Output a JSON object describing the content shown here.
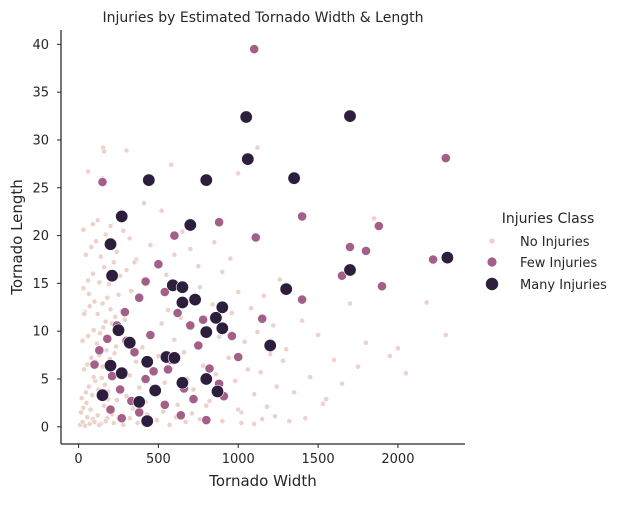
{
  "chart_data": {
    "type": "scatter",
    "title": "Injuries by Estimated Tornado Width & Length",
    "xlabel": "Tornado Width",
    "ylabel": "Tornado Length",
    "xlim": [
      -110,
      2420
    ],
    "ylim": [
      -1.8,
      41.5
    ],
    "xticks": [
      0,
      500,
      1000,
      1500,
      2000
    ],
    "yticks": [
      0,
      5,
      10,
      15,
      20,
      25,
      30,
      35,
      40
    ],
    "grid": false,
    "legend": {
      "title": "Injuries Class",
      "placement": "right",
      "entries": [
        "No Injuries",
        "Few Injuries",
        "Many Injuries"
      ]
    },
    "series": [
      {
        "name": "No Injuries",
        "color": "#edd1cb",
        "marker": "small",
        "points": [
          [
            10,
            0.2
          ],
          [
            25,
            0.5
          ],
          [
            40,
            0.1
          ],
          [
            55,
            1.0
          ],
          [
            70,
            0.3
          ],
          [
            90,
            0.8
          ],
          [
            15,
            1.5
          ],
          [
            30,
            2.0
          ],
          [
            50,
            2.5
          ],
          [
            75,
            1.8
          ],
          [
            100,
            0.5
          ],
          [
            120,
            1.2
          ],
          [
            140,
            0.3
          ],
          [
            160,
            2.2
          ],
          [
            180,
            0.9
          ],
          [
            200,
            1.6
          ],
          [
            220,
            0.4
          ],
          [
            240,
            2.8
          ],
          [
            260,
            1.1
          ],
          [
            280,
            0.2
          ],
          [
            20,
            3.0
          ],
          [
            45,
            3.6
          ],
          [
            65,
            4.2
          ],
          [
            85,
            3.3
          ],
          [
            105,
            4.8
          ],
          [
            125,
            3.9
          ],
          [
            145,
            5.1
          ],
          [
            165,
            4.4
          ],
          [
            185,
            3.7
          ],
          [
            205,
            5.6
          ],
          [
            35,
            6.0
          ],
          [
            55,
            6.5
          ],
          [
            80,
            7.2
          ],
          [
            110,
            6.8
          ],
          [
            130,
            7.5
          ],
          [
            150,
            6.3
          ],
          [
            175,
            8.0
          ],
          [
            195,
            7.1
          ],
          [
            215,
            6.6
          ],
          [
            235,
            8.4
          ],
          [
            25,
            9.0
          ],
          [
            60,
            9.5
          ],
          [
            95,
            10.1
          ],
          [
            115,
            8.7
          ],
          [
            135,
            9.8
          ],
          [
            155,
            10.4
          ],
          [
            170,
            11.0
          ],
          [
            190,
            9.3
          ],
          [
            210,
            10.8
          ],
          [
            230,
            11.5
          ],
          [
            40,
            12.0
          ],
          [
            70,
            12.6
          ],
          [
            100,
            13.1
          ],
          [
            120,
            11.8
          ],
          [
            150,
            12.9
          ],
          [
            180,
            13.5
          ],
          [
            200,
            12.3
          ],
          [
            250,
            13.8
          ],
          [
            270,
            12.1
          ],
          [
            290,
            11.2
          ],
          [
            30,
            14.5
          ],
          [
            60,
            15.3
          ],
          [
            90,
            16.0
          ],
          [
            130,
            15.1
          ],
          [
            160,
            16.7
          ],
          [
            190,
            14.9
          ],
          [
            220,
            17.2
          ],
          [
            260,
            15.8
          ],
          [
            300,
            16.4
          ],
          [
            330,
            14.2
          ],
          [
            45,
            18.0
          ],
          [
            80,
            18.8
          ],
          [
            110,
            19.4
          ],
          [
            140,
            17.8
          ],
          [
            170,
            20.1
          ],
          [
            200,
            19.0
          ],
          [
            240,
            18.3
          ],
          [
            280,
            20.5
          ],
          [
            320,
            19.7
          ],
          [
            360,
            17.5
          ],
          [
            30,
            20.6
          ],
          [
            90,
            21.2
          ],
          [
            150,
            26.0
          ],
          [
            155,
            29.2
          ],
          [
            160,
            28.8
          ],
          [
            300,
            28.9
          ],
          [
            580,
            27.4
          ],
          [
            60,
            26.7
          ],
          [
            120,
            21.6
          ],
          [
            200,
            21.0
          ],
          [
            300,
            3.2
          ],
          [
            320,
            5.4
          ],
          [
            340,
            1.9
          ],
          [
            360,
            6.8
          ],
          [
            380,
            4.1
          ],
          [
            400,
            8.3
          ],
          [
            420,
            2.6
          ],
          [
            440,
            9.7
          ],
          [
            460,
            5.9
          ],
          [
            480,
            3.5
          ],
          [
            500,
            7.4
          ],
          [
            520,
            10.8
          ],
          [
            540,
            4.6
          ],
          [
            560,
            12.2
          ],
          [
            580,
            6.1
          ],
          [
            600,
            9.1
          ],
          [
            620,
            2.3
          ],
          [
            640,
            11.4
          ],
          [
            660,
            7.8
          ],
          [
            680,
            5.0
          ],
          [
            700,
            13.4
          ],
          [
            720,
            3.9
          ],
          [
            740,
            8.7
          ],
          [
            760,
            14.6
          ],
          [
            780,
            6.4
          ],
          [
            800,
            10.2
          ],
          [
            820,
            2.7
          ],
          [
            840,
            12.8
          ],
          [
            860,
            5.5
          ],
          [
            880,
            9.4
          ],
          [
            900,
            16.2
          ],
          [
            920,
            3.1
          ],
          [
            940,
            7.2
          ],
          [
            960,
            11.9
          ],
          [
            980,
            4.8
          ],
          [
            1000,
            14.1
          ],
          [
            1020,
            1.5
          ],
          [
            1040,
            8.9
          ],
          [
            1060,
            6.0
          ],
          [
            1080,
            12.4
          ],
          [
            1100,
            3.4
          ],
          [
            1120,
            9.9
          ],
          [
            1140,
            5.7
          ],
          [
            1160,
            13.7
          ],
          [
            1180,
            2.1
          ],
          [
            1200,
            7.6
          ],
          [
            1220,
            10.6
          ],
          [
            1240,
            4.2
          ],
          [
            1260,
            15.4
          ],
          [
            1280,
            6.9
          ],
          [
            1300,
            8.1
          ],
          [
            1350,
            3.6
          ],
          [
            1400,
            11.1
          ],
          [
            1450,
            5.2
          ],
          [
            1500,
            9.6
          ],
          [
            1550,
            2.9
          ],
          [
            1600,
            7.0
          ],
          [
            1650,
            4.5
          ],
          [
            1700,
            12.9
          ],
          [
            1750,
            6.3
          ],
          [
            1800,
            8.8
          ],
          [
            1850,
            21.8
          ],
          [
            1950,
            7.4
          ],
          [
            2000,
            8.2
          ],
          [
            2050,
            5.6
          ],
          [
            2180,
            13.0
          ],
          [
            2300,
            9.6
          ],
          [
            1120,
            29.2
          ],
          [
            1000,
            26.5
          ],
          [
            700,
            18.6
          ],
          [
            350,
            17.2
          ],
          [
            410,
            23.4
          ],
          [
            450,
            19.0
          ],
          [
            520,
            22.6
          ],
          [
            550,
            15.9
          ],
          [
            600,
            18.0
          ],
          [
            650,
            20.4
          ],
          [
            750,
            16.8
          ],
          [
            850,
            19.3
          ],
          [
            950,
            17.6
          ],
          [
            1020,
            0.4
          ],
          [
            1150,
            0.8
          ],
          [
            1230,
            1.1
          ],
          [
            1320,
            0.6
          ],
          [
            1420,
            0.9
          ],
          [
            1530,
            2.4
          ],
          [
            1100,
            0.3
          ],
          [
            1000,
            1.8
          ],
          [
            900,
            0.6
          ],
          [
            800,
            2.2
          ],
          [
            320,
            0.9
          ],
          [
            370,
            0.4
          ],
          [
            430,
            1.3
          ],
          [
            490,
            0.7
          ],
          [
            530,
            1.6
          ],
          [
            570,
            0.2
          ],
          [
            610,
            1.0
          ],
          [
            670,
            0.5
          ],
          [
            710,
            1.4
          ],
          [
            760,
            0.8
          ],
          [
            130,
            0.2
          ],
          [
            170,
            0.6
          ],
          [
            210,
            1.3
          ],
          [
            250,
            0.9
          ],
          [
            35,
            11.8
          ],
          [
            65,
            13.9
          ],
          [
            95,
            5.2
          ],
          [
            145,
            8.2
          ],
          [
            185,
            2.9
          ],
          [
            225,
            7.7
          ]
        ]
      },
      {
        "name": "Few Injuries",
        "color": "#a35f87",
        "marker": "medium",
        "points": [
          [
            1100,
            39.5
          ],
          [
            2300,
            28.1
          ],
          [
            150,
            25.6
          ],
          [
            880,
            21.4
          ],
          [
            1400,
            22.0
          ],
          [
            1880,
            21.0
          ],
          [
            600,
            20.0
          ],
          [
            1110,
            19.8
          ],
          [
            1700,
            18.8
          ],
          [
            1800,
            18.4
          ],
          [
            2220,
            17.5
          ],
          [
            1650,
            15.8
          ],
          [
            1900,
            14.7
          ],
          [
            500,
            17.0
          ],
          [
            420,
            15.2
          ],
          [
            380,
            13.5
          ],
          [
            1400,
            13.3
          ],
          [
            1150,
            11.3
          ],
          [
            900,
            12.4
          ],
          [
            960,
            9.5
          ],
          [
            1000,
            7.3
          ],
          [
            540,
            14.1
          ],
          [
            290,
            12.0
          ],
          [
            240,
            10.6
          ],
          [
            180,
            9.2
          ],
          [
            130,
            8.0
          ],
          [
            100,
            6.5
          ],
          [
            210,
            5.3
          ],
          [
            260,
            3.9
          ],
          [
            330,
            2.7
          ],
          [
            470,
            5.8
          ],
          [
            580,
            7.0
          ],
          [
            660,
            4.0
          ],
          [
            750,
            8.5
          ],
          [
            820,
            6.1
          ],
          [
            910,
            3.2
          ],
          [
            700,
            10.6
          ],
          [
            620,
            11.9
          ],
          [
            450,
            9.6
          ],
          [
            350,
            7.8
          ],
          [
            150,
            3.1
          ],
          [
            200,
            1.8
          ],
          [
            270,
            0.9
          ],
          [
            380,
            1.5
          ],
          [
            540,
            2.3
          ],
          [
            640,
            1.2
          ],
          [
            720,
            2.9
          ],
          [
            800,
            0.7
          ],
          [
            880,
            4.5
          ],
          [
            560,
            6.0
          ],
          [
            780,
            11.2
          ],
          [
            300,
            9.0
          ],
          [
            420,
            5.0
          ]
        ]
      },
      {
        "name": "Many Injuries",
        "color": "#2d1e3e",
        "marker": "large",
        "points": [
          [
            1050,
            32.4
          ],
          [
            1700,
            32.5
          ],
          [
            1060,
            28.0
          ],
          [
            1350,
            26.0
          ],
          [
            440,
            25.8
          ],
          [
            800,
            25.8
          ],
          [
            270,
            22.0
          ],
          [
            700,
            21.1
          ],
          [
            200,
            19.1
          ],
          [
            2310,
            17.7
          ],
          [
            1700,
            16.4
          ],
          [
            210,
            15.8
          ],
          [
            590,
            14.8
          ],
          [
            650,
            14.6
          ],
          [
            1300,
            14.4
          ],
          [
            730,
            13.3
          ],
          [
            900,
            12.5
          ],
          [
            650,
            13.0
          ],
          [
            860,
            11.4
          ],
          [
            800,
            9.9
          ],
          [
            900,
            10.3
          ],
          [
            1200,
            8.5
          ],
          [
            550,
            7.3
          ],
          [
            600,
            7.2
          ],
          [
            800,
            5.0
          ],
          [
            430,
            6.8
          ],
          [
            480,
            3.8
          ],
          [
            650,
            4.6
          ],
          [
            320,
            8.8
          ],
          [
            250,
            10.1
          ],
          [
            200,
            6.4
          ],
          [
            150,
            3.3
          ],
          [
            430,
            0.6
          ],
          [
            270,
            5.6
          ],
          [
            380,
            2.6
          ],
          [
            870,
            3.7
          ]
        ]
      }
    ]
  }
}
